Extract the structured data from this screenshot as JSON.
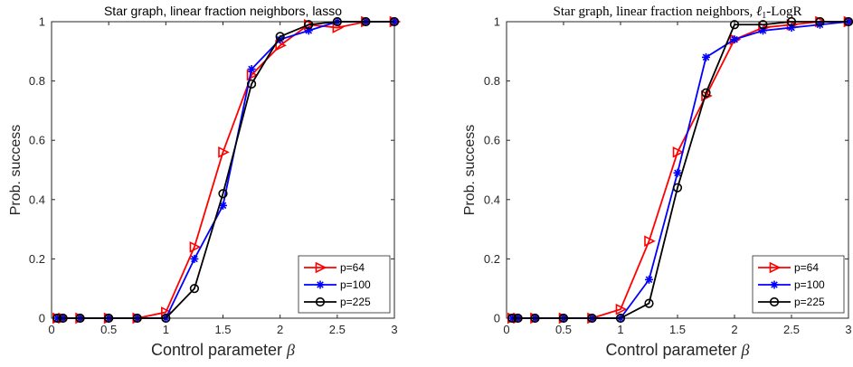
{
  "chart_data": [
    {
      "type": "line",
      "title": "Star graph, linear fraction neighbors, lasso",
      "xlabel": "Control parameter β",
      "ylabel": "Prob. success",
      "xlim": [
        0,
        3
      ],
      "ylim": [
        0,
        1
      ],
      "xticks": [
        "0",
        "0.5",
        "1",
        "1.5",
        "2",
        "2.5",
        "3"
      ],
      "yticks": [
        "0",
        "0.2",
        "0.4",
        "0.6",
        "0.8",
        "1"
      ],
      "grid": false,
      "legend_position": "bottom-right",
      "series": [
        {
          "name": "p=64",
          "color": "#ff0000",
          "marker": "triangle-right",
          "x": [
            0.05,
            0.1,
            0.25,
            0.5,
            0.75,
            1.0,
            1.25,
            1.5,
            1.75,
            2.0,
            2.25,
            2.5,
            2.75,
            3.0
          ],
          "y": [
            0,
            0,
            0,
            0,
            0,
            0.02,
            0.24,
            0.56,
            0.82,
            0.92,
            0.99,
            0.98,
            1.0,
            1.0
          ]
        },
        {
          "name": "p=100",
          "color": "#0000ff",
          "marker": "asterisk",
          "x": [
            0.05,
            0.1,
            0.25,
            0.5,
            0.75,
            1.0,
            1.25,
            1.5,
            1.75,
            2.0,
            2.25,
            2.5,
            2.75,
            3.0
          ],
          "y": [
            0,
            0,
            0,
            0,
            0,
            0,
            0.2,
            0.38,
            0.84,
            0.94,
            0.97,
            1.0,
            1.0,
            1.0
          ]
        },
        {
          "name": "p=225",
          "color": "#000000",
          "marker": "circle",
          "x": [
            0.05,
            0.1,
            0.25,
            0.5,
            0.75,
            1.0,
            1.25,
            1.5,
            1.75,
            2.0,
            2.25,
            2.5,
            2.75,
            3.0
          ],
          "y": [
            0,
            0,
            0,
            0,
            0,
            0,
            0.1,
            0.42,
            0.79,
            0.95,
            0.99,
            1.0,
            1.0,
            1.0
          ]
        }
      ]
    },
    {
      "type": "line",
      "title": "Star graph, linear fraction neighbors, ℓ1-LogR",
      "xlabel": "Control parameter β",
      "ylabel": "Prob. success",
      "xlim": [
        0,
        3
      ],
      "ylim": [
        0,
        1
      ],
      "xticks": [
        "0",
        "0.5",
        "1",
        "1.5",
        "2",
        "2.5",
        "3"
      ],
      "yticks": [
        "0",
        "0.2",
        "0.4",
        "0.6",
        "0.8",
        "1"
      ],
      "grid": false,
      "legend_position": "bottom-right",
      "series": [
        {
          "name": "p=64",
          "color": "#ff0000",
          "marker": "triangle-right",
          "x": [
            0.05,
            0.1,
            0.25,
            0.5,
            0.75,
            1.0,
            1.25,
            1.5,
            1.75,
            2.0,
            2.25,
            2.5,
            2.75,
            3.0
          ],
          "y": [
            0,
            0,
            0,
            0,
            0,
            0.03,
            0.26,
            0.56,
            0.75,
            0.94,
            0.98,
            0.99,
            1.0,
            1.0
          ]
        },
        {
          "name": "p=100",
          "color": "#0000ff",
          "marker": "asterisk",
          "x": [
            0.05,
            0.1,
            0.25,
            0.5,
            0.75,
            1.0,
            1.25,
            1.5,
            1.75,
            2.0,
            2.25,
            2.5,
            2.75,
            3.0
          ],
          "y": [
            0,
            0,
            0,
            0,
            0,
            0,
            0.13,
            0.49,
            0.88,
            0.94,
            0.97,
            0.98,
            0.99,
            1.0
          ]
        },
        {
          "name": "p=225",
          "color": "#000000",
          "marker": "circle",
          "x": [
            0.05,
            0.1,
            0.25,
            0.5,
            0.75,
            1.0,
            1.25,
            1.5,
            1.75,
            2.0,
            2.25,
            2.5,
            2.75,
            3.0
          ],
          "y": [
            0,
            0,
            0,
            0,
            0,
            0,
            0.05,
            0.44,
            0.76,
            0.99,
            0.99,
            1.0,
            1.0,
            1.0
          ]
        }
      ]
    }
  ]
}
